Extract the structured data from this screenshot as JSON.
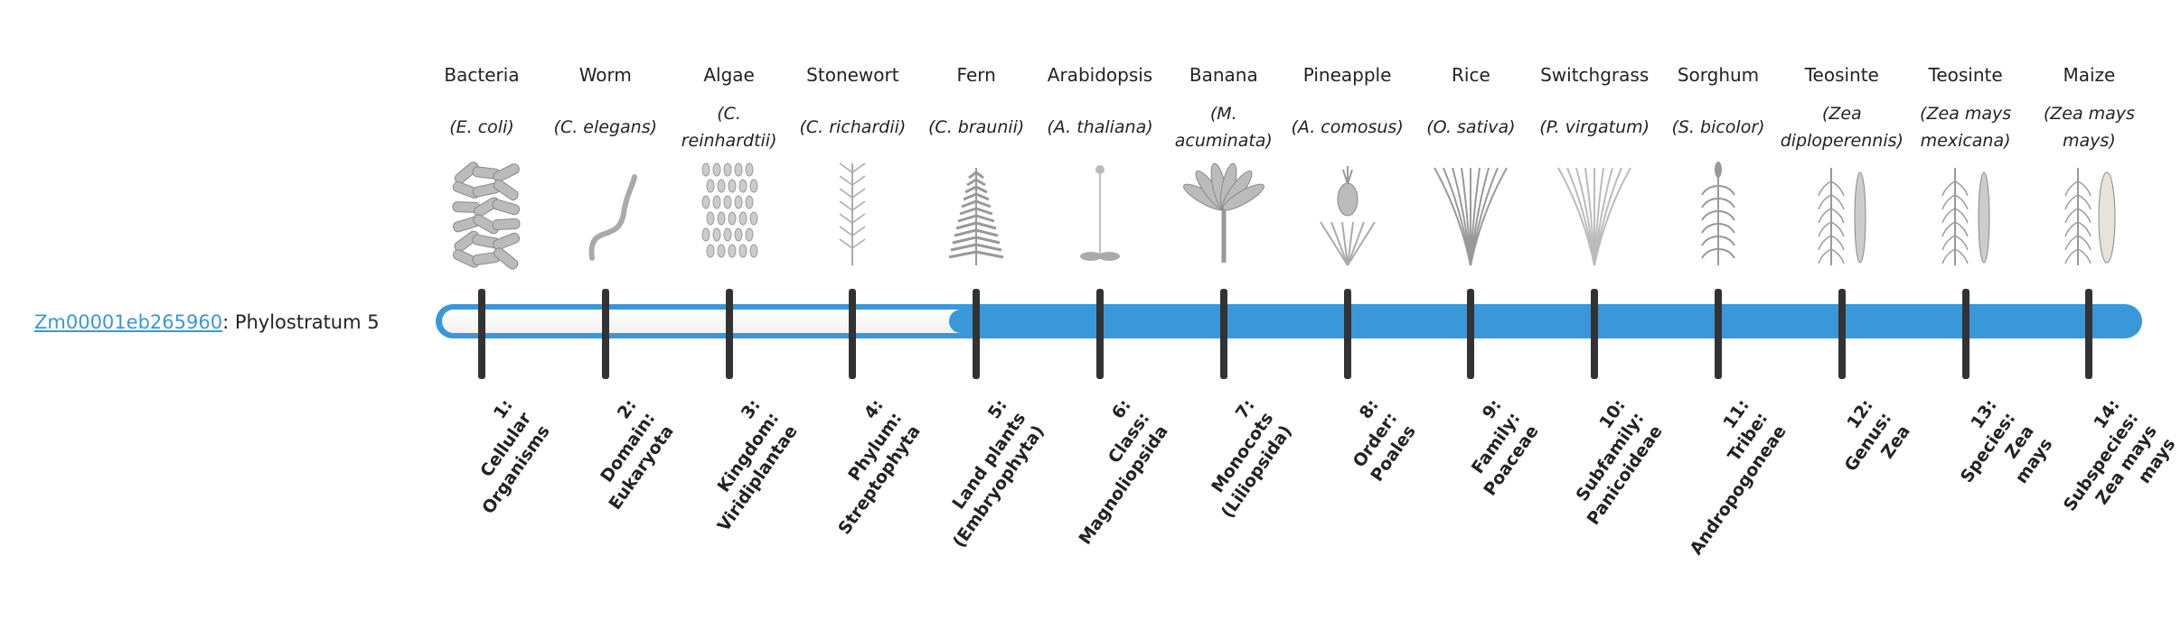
{
  "gene": {
    "id": "Zm00001eb265960",
    "suffix": ": Phylostratum 5"
  },
  "phylostratum": 5,
  "colors": {
    "bar": "#3898da",
    "tick": "#333333",
    "link": "#3a96dc"
  },
  "organisms": [
    {
      "name": "Bacteria",
      "latin": "(E. coli)",
      "icon": "bacteria-image"
    },
    {
      "name": "Worm",
      "latin": "(C. elegans)",
      "icon": "worm-image"
    },
    {
      "name": "Algae",
      "latin": "(C. reinhardtii)",
      "icon": "algae-image"
    },
    {
      "name": "Stonewort",
      "latin": "(C. richardii)",
      "icon": "stonewort-image"
    },
    {
      "name": "Fern",
      "latin": "(C. braunii)",
      "icon": "fern-image"
    },
    {
      "name": "Arabidopsis",
      "latin": "(A. thaliana)",
      "icon": "arabidopsis-image"
    },
    {
      "name": "Banana",
      "latin": "(M. acuminata)",
      "icon": "banana-image"
    },
    {
      "name": "Pineapple",
      "latin": "(A. comosus)",
      "icon": "pineapple-image"
    },
    {
      "name": "Rice",
      "latin": "(O. sativa)",
      "icon": "rice-image"
    },
    {
      "name": "Switchgrass",
      "latin": "(P. virgatum)",
      "icon": "switchgrass-image"
    },
    {
      "name": "Sorghum",
      "latin": "(S. bicolor)",
      "icon": "sorghum-image"
    },
    {
      "name": "Teosinte",
      "latin": "(Zea diploperennis)",
      "icon": "teosinte-image"
    },
    {
      "name": "Teosinte",
      "latin": "(Zea mays mexicana)",
      "icon": "teosinte-image"
    },
    {
      "name": "Maize",
      "latin": "(Zea mays mays)",
      "icon": "maize-image"
    }
  ],
  "strata": [
    "1:\nCellular\nOrganisms",
    "2:\nDomain:\nEukaryota",
    "3:\nKingdom:\nViridiplantae",
    "4:\nPhylum:\nStreptophyta",
    "5:\nLand plants\n(Embryophyta)",
    "6:\nClass:\nMagnoliopsida",
    "7:\nMonocots\n(Liliopsida)",
    "8:\nOrder:\nPoales",
    "9:\nFamily:\nPoaceae",
    "10:\nSubfamily:\nPanicoideae",
    "11:\nTribe:\nAndropogoneae",
    "12:\nGenus:\nZea",
    "13:\nSpecies:\nZea\nmays",
    "14:\nSubspecies:\nZea mays\nmays"
  ]
}
